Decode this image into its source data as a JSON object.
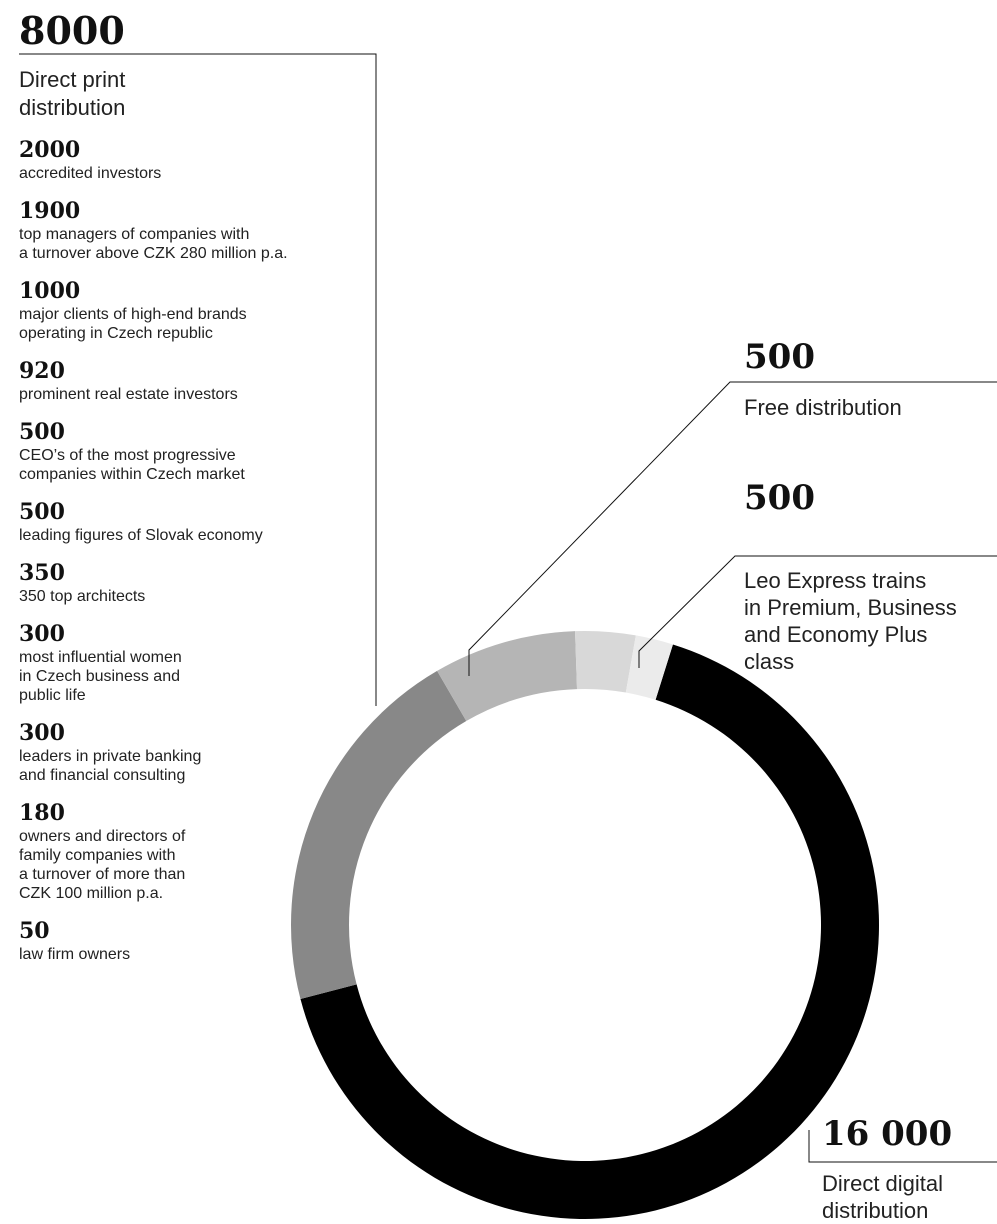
{
  "chart_data": {
    "type": "pie",
    "donut": true,
    "slices": [
      {
        "value": 16000,
        "label": "16 000",
        "name": "Direct digital distribution",
        "color": "#000000"
      },
      {
        "value": 5000,
        "color": "#888888"
      },
      {
        "value": 1900,
        "color": "#b5b5b5"
      },
      {
        "value": 800,
        "color": "#d8d8d8"
      },
      {
        "value": 500,
        "label": "500",
        "name": "Leo Express trains\nin Premium, Business\nand Economy Plus\nclass",
        "color": "#ebebeb"
      }
    ],
    "free": {
      "label": "500",
      "name": "Free distribution"
    },
    "direct_print": {
      "total": "8000",
      "label": "Direct print\ndistribution",
      "items": [
        {
          "value": "2000",
          "desc": "accredited investors"
        },
        {
          "value": "1900",
          "desc": "top managers of companies with\na turnover above CZK 280 million p.a."
        },
        {
          "value": "1000",
          "desc": "major clients of high-end brands\noperating in Czech republic"
        },
        {
          "value": "920",
          "desc": "prominent real estate investors"
        },
        {
          "value": "500",
          "desc": "CEO’s of the most progressive\ncompanies within Czech market"
        },
        {
          "value": "500",
          "desc": "leading figures of Slovak economy"
        },
        {
          "value": "350",
          "desc": "350 top architects"
        },
        {
          "value": "300",
          "desc": "most influential women\nin Czech business and\npublic life"
        },
        {
          "value": "300",
          "desc": "leaders in private banking\nand financial consulting"
        },
        {
          "value": "180",
          "desc": "owners and directors of\nfamily companies with\na turnover of more than\nCZK 100 million p.a."
        },
        {
          "value": "50",
          "desc": "law firm owners"
        }
      ]
    }
  }
}
